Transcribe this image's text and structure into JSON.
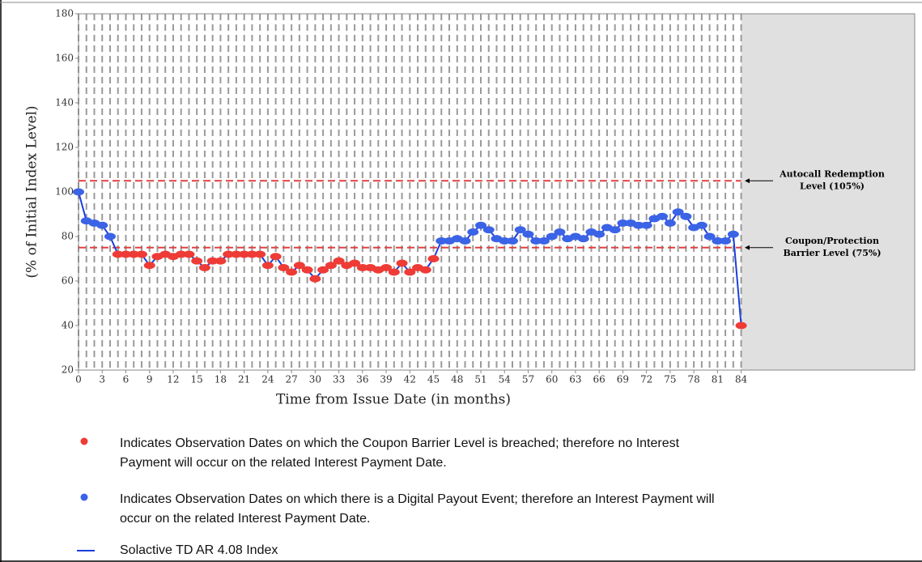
{
  "chart_data": {
    "type": "line",
    "x_label": "Time from Issue Date (in months)",
    "y_label": "(% of Initial Index Level)",
    "x": [
      0,
      1,
      2,
      3,
      4,
      5,
      6,
      7,
      8,
      9,
      10,
      11,
      12,
      13,
      14,
      15,
      16,
      17,
      18,
      19,
      20,
      21,
      22,
      23,
      24,
      25,
      26,
      27,
      28,
      29,
      30,
      31,
      32,
      33,
      34,
      35,
      36,
      37,
      38,
      39,
      40,
      41,
      42,
      43,
      44,
      45,
      46,
      47,
      48,
      49,
      50,
      51,
      52,
      53,
      54,
      55,
      56,
      57,
      58,
      59,
      60,
      61,
      62,
      63,
      64,
      65,
      66,
      67,
      68,
      69,
      70,
      71,
      72,
      73,
      74,
      75,
      76,
      77,
      78,
      79,
      80,
      81,
      82,
      83,
      84
    ],
    "series": [
      {
        "name": "Solactive TD AR 4.08 Index",
        "color": "#1a3ee0",
        "values": [
          100,
          87,
          86,
          85,
          80,
          72,
          72,
          72,
          72,
          67,
          71,
          72,
          71,
          72,
          72,
          69,
          66,
          69,
          69,
          72,
          72,
          72,
          72,
          72,
          67,
          71,
          66,
          64,
          67,
          65,
          61,
          65,
          67,
          69,
          67,
          68,
          66,
          66,
          65,
          66,
          64,
          68,
          64,
          66,
          65,
          70,
          78,
          78,
          79,
          78,
          82,
          85,
          83,
          79,
          78,
          78,
          83,
          81,
          78,
          78,
          80,
          82,
          79,
          80,
          79,
          82,
          81,
          84,
          83,
          86,
          86,
          85,
          85,
          88,
          89,
          86,
          91,
          89,
          84,
          85,
          80,
          78,
          78,
          81,
          40
        ]
      }
    ],
    "xlim": [
      0,
      106
    ],
    "xticks": [
      0,
      3,
      6,
      9,
      12,
      15,
      18,
      21,
      24,
      27,
      30,
      33,
      36,
      39,
      42,
      45,
      48,
      51,
      54,
      57,
      60,
      63,
      66,
      69,
      72,
      75,
      78,
      81,
      84
    ],
    "ylim": [
      20,
      180
    ],
    "yticks": [
      20,
      40,
      60,
      80,
      100,
      120,
      140,
      160,
      180
    ],
    "shaded_after": 84,
    "breach_color": "#ee3b36",
    "payout_color": "#3b63e6",
    "reference_lines": [
      {
        "value": 105,
        "label": [
          "Autocall Redemption",
          "Level (105%)"
        ]
      },
      {
        "value": 75,
        "label": [
          "Coupon/Protection",
          "Barrier Level (75%)"
        ]
      }
    ],
    "legend": [
      {
        "marker": "breach",
        "text": [
          "Indicates Observation Dates on which the Coupon Barrier Level is breached; therefore no Interest",
          "Payment will occur on the related Interest Payment Date."
        ]
      },
      {
        "marker": "payout",
        "text": [
          "Indicates Observation Dates on which there is a Digital Payout Event; therefore an Interest Payment will",
          "occur on the related Interest Payment Date."
        ]
      },
      {
        "marker": "line",
        "text": [
          "Solactive TD AR 4.08 Index"
        ]
      }
    ]
  }
}
